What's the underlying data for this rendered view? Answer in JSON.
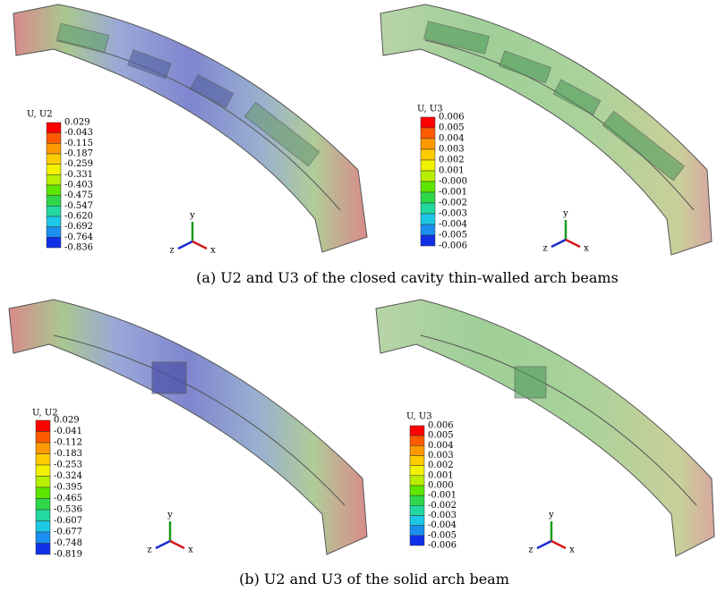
{
  "panels": [
    {
      "legend": {
        "title": "U, U2",
        "labels": [
          "0.029",
          "-0.043",
          "-0.115",
          "-0.187",
          "-0.259",
          "-0.331",
          "-0.403",
          "-0.475",
          "-0.547",
          "-0.620",
          "-0.692",
          "-0.764",
          "-0.836"
        ]
      },
      "triad": [
        "y",
        "z",
        "x"
      ]
    },
    {
      "legend": {
        "title": "U, U3",
        "labels": [
          "0.006",
          "0.005",
          "0.004",
          "0.003",
          "0.002",
          "0.001",
          "-0.000",
          "-0.001",
          "-0.002",
          "-0.003",
          "-0.004",
          "-0.005",
          "-0.006"
        ]
      },
      "triad": [
        "y",
        "z",
        "x"
      ]
    },
    {
      "legend": {
        "title": "U, U2",
        "labels": [
          "0.029",
          "-0.041",
          "-0.112",
          "-0.183",
          "-0.253",
          "-0.324",
          "-0.395",
          "-0.465",
          "-0.536",
          "-0.607",
          "-0.677",
          "-0.748",
          "-0.819"
        ]
      },
      "triad": [
        "y",
        "z",
        "x"
      ]
    },
    {
      "legend": {
        "title": "U, U3",
        "labels": [
          "0.006",
          "0.005",
          "0.004",
          "0.003",
          "0.002",
          "0.001",
          "0.000",
          "-0.001",
          "-0.002",
          "-0.003",
          "-0.004",
          "-0.005",
          "-0.006"
        ]
      },
      "triad": [
        "y",
        "z",
        "x"
      ]
    }
  ],
  "captions": [
    "(a) U2 and U3 of the closed cavity thin-walled arch beams",
    "(b) U2 and U3 of the solid arch beam"
  ]
}
